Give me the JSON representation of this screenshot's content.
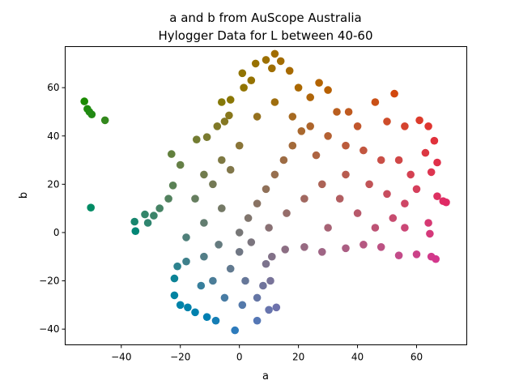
{
  "chart_data": {
    "type": "scatter",
    "title_line1": "a and b from AuScope Australia",
    "title_line2": "Hylogger Data for L between 40-60",
    "xlabel": "a",
    "ylabel": "b",
    "xlim": [
      -59,
      77
    ],
    "ylim": [
      -46.5,
      77
    ],
    "x_ticks": [
      -40,
      -20,
      0,
      20,
      40,
      60
    ],
    "y_ticks": [
      -40,
      -20,
      0,
      20,
      40,
      60
    ],
    "grid": false,
    "legend": "none",
    "color_encoding": "Lab color at L=50 from (a, b)",
    "points": [
      {
        "a": -52.5,
        "b": 54.3
      },
      {
        "a": -51.5,
        "b": 51.2
      },
      {
        "a": -50.8,
        "b": 50.0
      },
      {
        "a": -50.0,
        "b": 48.9
      },
      {
        "a": -45.5,
        "b": 46.5
      },
      {
        "a": -50.3,
        "b": 10.3
      },
      {
        "a": -35.5,
        "b": 4.5
      },
      {
        "a": -35.2,
        "b": 0.6
      },
      {
        "a": -32.0,
        "b": 7.5
      },
      {
        "a": -31.0,
        "b": 4.0
      },
      {
        "a": -29.0,
        "b": 7.0
      },
      {
        "a": -27.0,
        "b": 10.0
      },
      {
        "a": -24.0,
        "b": 14.0
      },
      {
        "a": -22.5,
        "b": 19.5
      },
      {
        "a": -23.0,
        "b": 32.5
      },
      {
        "a": -20.0,
        "b": 28.0
      },
      {
        "a": -14.5,
        "b": 38.5
      },
      {
        "a": -11.0,
        "b": 39.5
      },
      {
        "a": -7.5,
        "b": 44.0
      },
      {
        "a": -5.0,
        "b": 46.0
      },
      {
        "a": -3.5,
        "b": 48.5
      },
      {
        "a": -6.0,
        "b": 54.0
      },
      {
        "a": -3.0,
        "b": 55.0
      },
      {
        "a": 1.0,
        "b": 66.0
      },
      {
        "a": 1.5,
        "b": 60.0
      },
      {
        "a": 4.0,
        "b": 63.0
      },
      {
        "a": 5.5,
        "b": 70.0
      },
      {
        "a": 9.0,
        "b": 71.5
      },
      {
        "a": 12.0,
        "b": 74.0
      },
      {
        "a": 11.0,
        "b": 68.0
      },
      {
        "a": 14.0,
        "b": 71.0
      },
      {
        "a": 17.0,
        "b": 67.0
      },
      {
        "a": 20.0,
        "b": 60.0
      },
      {
        "a": 24.0,
        "b": 56.0
      },
      {
        "a": 27.0,
        "b": 62.0
      },
      {
        "a": 30.0,
        "b": 59.0
      },
      {
        "a": 33.0,
        "b": 50.0
      },
      {
        "a": 37.0,
        "b": 50.0
      },
      {
        "a": 46.0,
        "b": 54.0
      },
      {
        "a": 52.5,
        "b": 57.5
      },
      {
        "a": 50.0,
        "b": 46.0
      },
      {
        "a": 56.0,
        "b": 44.0
      },
      {
        "a": 61.0,
        "b": 46.5
      },
      {
        "a": 64.0,
        "b": 44.0
      },
      {
        "a": 66.0,
        "b": 38.0
      },
      {
        "a": 63.0,
        "b": 33.0
      },
      {
        "a": 67.0,
        "b": 29.0
      },
      {
        "a": 65.0,
        "b": 25.0
      },
      {
        "a": 69.0,
        "b": 13.0
      },
      {
        "a": 70.0,
        "b": 12.5
      },
      {
        "a": 67.0,
        "b": 15.0
      },
      {
        "a": 64.0,
        "b": 4.0
      },
      {
        "a": 64.5,
        "b": -0.5
      },
      {
        "a": 65.0,
        "b": -10.0
      },
      {
        "a": 66.5,
        "b": -11.0
      },
      {
        "a": 60.0,
        "b": -9.0
      },
      {
        "a": 54.0,
        "b": -9.5
      },
      {
        "a": 48.0,
        "b": -6.0
      },
      {
        "a": 42.0,
        "b": -5.0
      },
      {
        "a": 36.0,
        "b": -6.5
      },
      {
        "a": 28.0,
        "b": -8.0
      },
      {
        "a": 22.0,
        "b": -6.0
      },
      {
        "a": 15.5,
        "b": -7.0
      },
      {
        "a": 11.0,
        "b": -10.0
      },
      {
        "a": 9.0,
        "b": -13.0
      },
      {
        "a": 10.5,
        "b": -20.0
      },
      {
        "a": 8.0,
        "b": -22.0
      },
      {
        "a": 6.0,
        "b": -27.0
      },
      {
        "a": 12.5,
        "b": -31.0
      },
      {
        "a": 10.0,
        "b": -32.0
      },
      {
        "a": 6.0,
        "b": -36.5
      },
      {
        "a": -1.5,
        "b": -40.5
      },
      {
        "a": -8.0,
        "b": -36.5
      },
      {
        "a": -11.0,
        "b": -35.0
      },
      {
        "a": -15.0,
        "b": -33.0
      },
      {
        "a": -17.5,
        "b": -31.0
      },
      {
        "a": -20.0,
        "b": -30.0
      },
      {
        "a": -22.0,
        "b": -26.0
      },
      {
        "a": -22.0,
        "b": -19.0
      },
      {
        "a": -21.0,
        "b": -14.0
      },
      {
        "a": -18.0,
        "b": -12.0
      },
      {
        "a": -12.0,
        "b": -10.0
      },
      {
        "a": -7.0,
        "b": -5.0
      },
      {
        "a": 0.0,
        "b": -8.0
      },
      {
        "a": -18.0,
        "b": -2.0
      },
      {
        "a": -12.0,
        "b": 4.0
      },
      {
        "a": -6.0,
        "b": 10.0
      },
      {
        "a": -15.0,
        "b": 14.0
      },
      {
        "a": -9.0,
        "b": 20.0
      },
      {
        "a": -3.0,
        "b": 26.0
      },
      {
        "a": -12.0,
        "b": 24.0
      },
      {
        "a": -6.0,
        "b": 30.0
      },
      {
        "a": 0.0,
        "b": 36.0
      },
      {
        "a": 0.0,
        "b": 0.0
      },
      {
        "a": 3.0,
        "b": 6.0
      },
      {
        "a": 6.0,
        "b": 12.0
      },
      {
        "a": 9.0,
        "b": 18.0
      },
      {
        "a": 12.0,
        "b": 24.0
      },
      {
        "a": 15.0,
        "b": 30.0
      },
      {
        "a": 18.0,
        "b": 36.0
      },
      {
        "a": 21.0,
        "b": 42.0
      },
      {
        "a": 6.0,
        "b": 48.0
      },
      {
        "a": 12.0,
        "b": 54.0
      },
      {
        "a": 18.0,
        "b": 48.0
      },
      {
        "a": 24.0,
        "b": 44.0
      },
      {
        "a": 30.0,
        "b": 40.0
      },
      {
        "a": 36.0,
        "b": 36.0
      },
      {
        "a": 42.0,
        "b": 34.0
      },
      {
        "a": 48.0,
        "b": 30.0
      },
      {
        "a": 54.0,
        "b": 30.0
      },
      {
        "a": 58.0,
        "b": 24.0
      },
      {
        "a": 60.0,
        "b": 18.0
      },
      {
        "a": 56.0,
        "b": 12.0
      },
      {
        "a": 52.0,
        "b": 6.0
      },
      {
        "a": 46.0,
        "b": 2.0
      },
      {
        "a": 40.0,
        "b": 8.0
      },
      {
        "a": 34.0,
        "b": 14.0
      },
      {
        "a": 28.0,
        "b": 20.0
      },
      {
        "a": 22.0,
        "b": 14.0
      },
      {
        "a": 16.0,
        "b": 8.0
      },
      {
        "a": 10.0,
        "b": 2.0
      },
      {
        "a": 4.0,
        "b": -4.0
      },
      {
        "a": 30.0,
        "b": 2.0
      },
      {
        "a": 36.0,
        "b": 24.0
      },
      {
        "a": 44.0,
        "b": 20.0
      },
      {
        "a": 50.0,
        "b": 16.0
      },
      {
        "a": 56.0,
        "b": 2.0
      },
      {
        "a": 40.0,
        "b": 44.0
      },
      {
        "a": 26.0,
        "b": 32.0
      },
      {
        "a": -9.0,
        "b": -20.0
      },
      {
        "a": -3.0,
        "b": -15.0
      },
      {
        "a": 2.0,
        "b": -20.0
      },
      {
        "a": -5.0,
        "b": -27.0
      },
      {
        "a": -13.0,
        "b": -22.0
      },
      {
        "a": 1.0,
        "b": -30.0
      }
    ]
  }
}
